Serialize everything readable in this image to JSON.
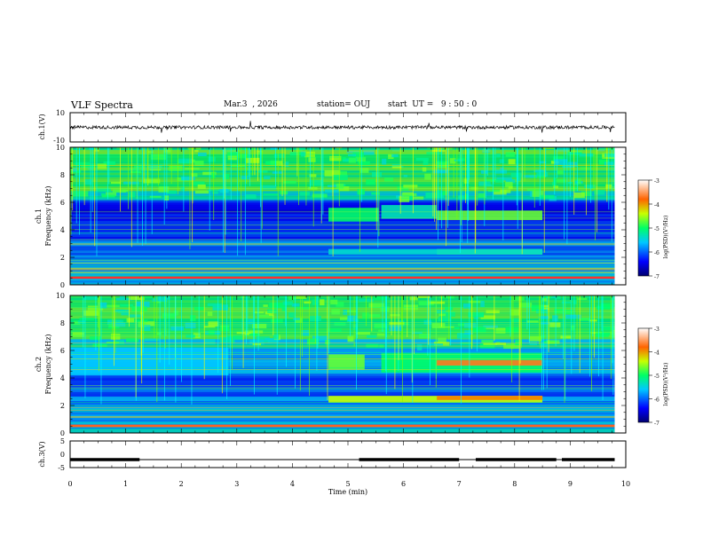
{
  "header": {
    "title": "VLF Spectra",
    "date": "Mar.3  , 2026",
    "station": "station= OUJ",
    "start_time": "start  UT =   9 : 50 : 0"
  },
  "chart_data": [
    {
      "type": "line",
      "ylabel": "ch.1(V)",
      "ylim": [
        -10,
        10
      ],
      "yticks": [
        "10",
        "-10"
      ],
      "x": [
        0,
        1,
        2,
        3,
        4,
        5,
        6,
        7,
        8,
        9,
        9.8
      ],
      "y": [
        0,
        0,
        0,
        0,
        0,
        0,
        0,
        0,
        0,
        0,
        0
      ]
    },
    {
      "type": "heatmap",
      "ylabel": "ch.1\nFrequency (kHz)",
      "ylim": [
        0,
        10
      ],
      "yticks": [
        "0",
        "2",
        "4",
        "6",
        "8",
        "10"
      ],
      "colorbar": {
        "label": "log(PSD)(V²/Hz)",
        "range": [
          -7,
          -3
        ],
        "ticks": [
          "-3",
          "-4",
          "-5",
          "-6",
          "-7"
        ]
      },
      "features": [
        {
          "x": [
            4.65,
            5.55
          ],
          "y": [
            4.6,
            5.6
          ],
          "level": -5.0
        },
        {
          "x": [
            5.6,
            6.6
          ],
          "y": [
            4.8,
            5.8
          ],
          "level": -5.3
        },
        {
          "x": [
            6.6,
            8.5
          ],
          "y": [
            4.7,
            5.4
          ],
          "level": -4.7
        },
        {
          "x": [
            6.6,
            8.5
          ],
          "y": [
            2.2,
            2.6
          ],
          "level": -4.7
        },
        {
          "x": [
            4.65,
            8.5
          ],
          "y": [
            2.2,
            2.6
          ],
          "level": -5.4
        }
      ]
    },
    {
      "type": "heatmap",
      "ylabel": "ch.2\nFrequency (kHz)",
      "ylim": [
        0,
        10
      ],
      "yticks": [
        "0",
        "2",
        "4",
        "6",
        "8",
        "10"
      ],
      "colorbar": {
        "label": "log(PSD)(V²/Hz)",
        "range": [
          -7,
          -3
        ],
        "ticks": [
          "-3",
          "-4",
          "-5",
          "-6",
          "-7"
        ]
      },
      "features": [
        {
          "x": [
            0,
            2.85
          ],
          "y": [
            4.2,
            6.2
          ],
          "level": -5.6
        },
        {
          "x": [
            4.65,
            5.3
          ],
          "y": [
            4.6,
            5.7
          ],
          "level": -4.7
        },
        {
          "x": [
            5.6,
            8.5
          ],
          "y": [
            4.4,
            5.8
          ],
          "level": -5.0
        },
        {
          "x": [
            6.6,
            8.5
          ],
          "y": [
            4.9,
            5.3
          ],
          "level": -3.7
        },
        {
          "x": [
            4.65,
            8.5
          ],
          "y": [
            2.2,
            2.7
          ],
          "level": -4.4
        },
        {
          "x": [
            6.6,
            8.5
          ],
          "y": [
            2.4,
            2.7
          ],
          "level": -3.9
        }
      ]
    },
    {
      "type": "line",
      "ylabel": "ch.3(V)",
      "ylim": [
        -5,
        5
      ],
      "yticks": [
        "5",
        "0",
        "-5"
      ],
      "x": [
        0,
        1.25,
        1.25,
        5.2,
        5.2,
        7.0,
        7.0,
        7.3,
        7.3,
        8.75,
        8.75,
        8.85,
        8.85,
        9.8
      ],
      "y": [
        -2,
        -2,
        -2,
        -2,
        -2,
        -2,
        -2,
        -2,
        -2,
        -2,
        -2,
        -2,
        -2,
        -2
      ],
      "thick_segments": [
        [
          0,
          1.25
        ],
        [
          5.2,
          7.0
        ],
        [
          7.3,
          8.75
        ],
        [
          8.85,
          9.8
        ]
      ]
    }
  ],
  "xaxis": {
    "label": "Time (min)",
    "range": [
      0,
      10
    ],
    "ticks": [
      "0",
      "1",
      "2",
      "3",
      "4",
      "5",
      "6",
      "7",
      "8",
      "9",
      "10"
    ]
  }
}
